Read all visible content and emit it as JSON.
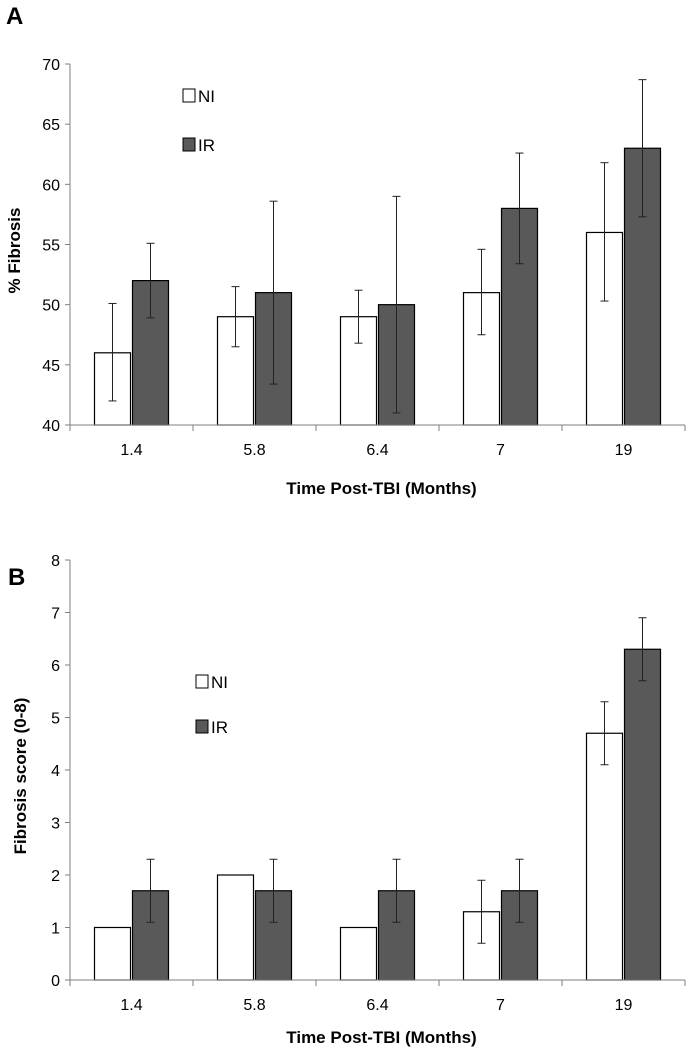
{
  "chart_data": [
    {
      "type": "bar",
      "panel_label": "A",
      "title": "",
      "xlabel": "Time Post-TBI (Months)",
      "ylabel": "% Fibrosis",
      "categories": [
        "1.4",
        "5.8",
        "6.4",
        "7",
        "19"
      ],
      "ylim": [
        40,
        70
      ],
      "yticks": [
        40,
        45,
        50,
        55,
        60,
        65,
        70
      ],
      "grid": false,
      "legend_position": "top-left",
      "series": [
        {
          "name": "NI",
          "color": "#ffffff",
          "values": [
            46,
            49,
            49,
            51,
            56
          ],
          "err_low": [
            42,
            46.5,
            46.8,
            47.5,
            50.3
          ],
          "err_high": [
            50.1,
            51.5,
            51.2,
            54.6,
            61.8
          ]
        },
        {
          "name": "IR",
          "color": "#595959",
          "values": [
            52,
            51,
            50,
            58,
            63
          ],
          "err_low": [
            48.9,
            43.4,
            41,
            53.4,
            57.3
          ],
          "err_high": [
            55.1,
            58.6,
            59,
            62.6,
            68.7
          ]
        }
      ]
    },
    {
      "type": "bar",
      "panel_label": "B",
      "title": "",
      "xlabel": "Time Post-TBI (Months)",
      "ylabel": "Fibrosis score (0-8)",
      "categories": [
        "1.4",
        "5.8",
        "6.4",
        "7",
        "19"
      ],
      "ylim": [
        0,
        8
      ],
      "yticks": [
        0,
        1,
        2,
        3,
        4,
        5,
        6,
        7,
        8
      ],
      "grid": false,
      "legend_position": "top-left",
      "series": [
        {
          "name": "NI",
          "color": "#ffffff",
          "values": [
            1,
            2,
            1,
            1.3,
            4.7
          ],
          "err_low": [
            null,
            null,
            null,
            0.7,
            4.1
          ],
          "err_high": [
            null,
            null,
            null,
            1.9,
            5.3
          ]
        },
        {
          "name": "IR",
          "color": "#595959",
          "values": [
            1.7,
            1.7,
            1.7,
            1.7,
            6.3
          ],
          "err_low": [
            1.1,
            1.1,
            1.1,
            1.1,
            5.7
          ],
          "err_high": [
            2.3,
            2.3,
            2.3,
            2.3,
            6.9
          ]
        }
      ]
    }
  ]
}
